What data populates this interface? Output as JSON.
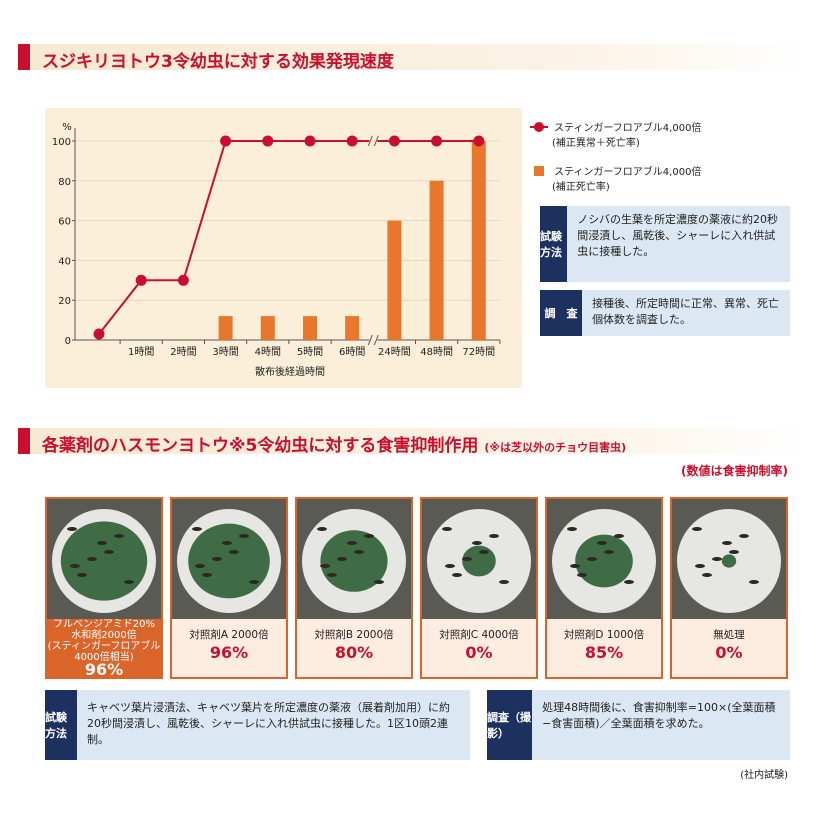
{
  "section1": {
    "title": "スジキリヨトウ3令幼虫に対する効果発現速度",
    "info": [
      {
        "label": "試験方法",
        "text": "ノシバの生葉を所定濃度の薬液に約20秒間浸漬し、風乾後、シャーレに入れ供試虫に接種した。"
      },
      {
        "label": "調　査",
        "text": "接種後、所定時間に正常、異常、死亡個体数を調査した。"
      }
    ]
  },
  "chart_data": {
    "type": "bar",
    "y_label": "%",
    "x_label": "散布後経過時間",
    "categories": [
      null,
      "1時間",
      "2時間",
      "3時間",
      "4時間",
      "5時間",
      "6時間",
      "24時間",
      "48時間",
      "72時間"
    ],
    "series": [
      {
        "name": "スティンガーフロアブル4,000倍",
        "note": "(補正異常＋死亡率)",
        "type": "line",
        "color": "#c8102e",
        "values": [
          3,
          30,
          30,
          100,
          100,
          100,
          100,
          100,
          100,
          100
        ]
      },
      {
        "name": "スティンガーフロアブル4,000倍",
        "note": "(補正死亡率)",
        "type": "bar",
        "color": "#e8762d",
        "values": [
          null,
          null,
          null,
          12,
          12,
          12,
          12,
          60,
          80,
          100
        ]
      }
    ],
    "ylim": [
      0,
      100
    ],
    "yticks": [
      0,
      20,
      40,
      60,
      80,
      100
    ],
    "grid": true
  },
  "section2": {
    "title": "各薬剤のハスモンヨトウ※5令幼虫に対する食害抑制作用",
    "title_note": "(※は芝以外のチョウ目害虫)",
    "subnote": "(数値は食害抑制率)",
    "panels": [
      {
        "label_lines": [
          "フルベンジアミド20%",
          "水和剤2000倍",
          "(スティンガーフロアブル",
          "4000倍相当)"
        ],
        "value": "96%"
      },
      {
        "label_lines": [
          "対照剤A 2000倍"
        ],
        "value": "96%"
      },
      {
        "label_lines": [
          "対照剤B 2000倍"
        ],
        "value": "80%"
      },
      {
        "label_lines": [
          "対照剤C 4000倍"
        ],
        "value": "0%"
      },
      {
        "label_lines": [
          "対照剤D 1000倍"
        ],
        "value": "85%"
      },
      {
        "label_lines": [
          "無処理"
        ],
        "value": "0%"
      }
    ],
    "info": [
      {
        "label": "試験方法",
        "text": "キャベツ葉片浸漬法、キャベツ葉片を所定濃度の薬液（展着剤加用）に約20秒間浸漬し、風乾後、シャーレに入れ供試虫に接種した。1区10頭2連制。"
      },
      {
        "label": "調査（撮影）",
        "text": "処理48時間後に、食害抑制率=100×(全葉面積−食害面積)／全葉面積を求めた。"
      }
    ],
    "footnote": "(社内試験)"
  }
}
